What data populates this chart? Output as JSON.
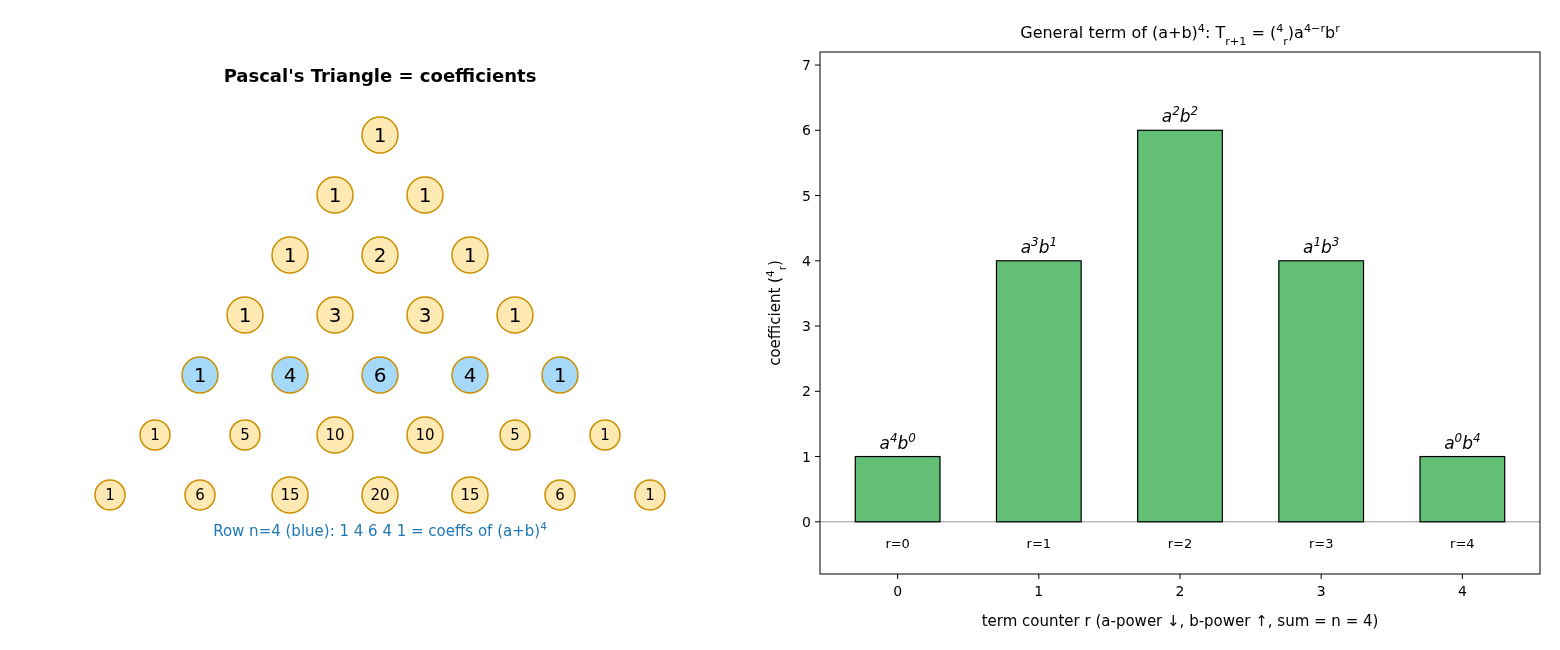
{
  "chart_data": [
    {
      "type": "other",
      "title": "Pascal's Triangle = coefficients",
      "values": [
        1,
        1,
        1,
        1,
        2,
        1,
        1,
        3,
        3,
        1,
        1,
        4,
        6,
        4,
        1,
        1,
        5,
        10,
        10,
        5,
        1,
        1,
        6,
        15,
        20,
        15,
        6,
        1
      ],
      "data_labels": true,
      "colors": [
        "#ffe9b3",
        "#ffe9b3",
        "#ffe9b3",
        "#ffe9b3",
        "#ffe9b3",
        "#ffe9b3",
        "#ffe9b3",
        "#ffe9b3",
        "#ffe9b3",
        "#ffe9b3",
        "#a6d8f7",
        "#a6d8f7",
        "#a6d8f7",
        "#a6d8f7",
        "#a6d8f7",
        "#ffe9b3",
        "#ffe9b3",
        "#ffe9b3",
        "#ffe9b3",
        "#ffe9b3",
        "#ffe9b3",
        "#ffe9b3",
        "#ffe9b3",
        "#ffe9b3",
        "#ffe9b3",
        "#ffe9b3",
        "#ffe9b3",
        "#ffe9b3"
      ],
      "annotations": [
        "Row n=4 (blue): 1 4 6 4 1  =  coeffs of (a+b)$^{4}$"
      ]
    },
    {
      "type": "bar",
      "title": "General term of (a+b)$^{4}$:  T$_{r+1}$ = ($^{4}$$_{r}$)a$^{4−r}$b$^{r}$",
      "xlabel": "term counter r  (a-power ↓, b-power ↑, sum = n = 4)",
      "ylabel": "coefficient  ($^{4}$$_{r}$)",
      "categories": [
        "0",
        "1",
        "2",
        "3",
        "4"
      ],
      "values": [
        1,
        4,
        6,
        4,
        1
      ],
      "color": "#63bf76",
      "value_labels": [
        "a$^{4}$b$^{0}$",
        "a$^{3}$b$^{1}$",
        "a$^{2}$b$^{2}$",
        "a$^{1}$b$^{3}$",
        "a$^{0}$b$^{4}$"
      ],
      "ylim": [
        -0.8,
        7.2
      ],
      "yticks": [
        0,
        1,
        2,
        3,
        4,
        5,
        6,
        7
      ],
      "grid": false,
      "ref_lines": [
        {
          "axis": "y",
          "value": 0,
          "color": "#808080"
        }
      ],
      "annotations": [
        "r=0",
        "r=1",
        "r=2",
        "r=3",
        "r=4"
      ]
    }
  ]
}
